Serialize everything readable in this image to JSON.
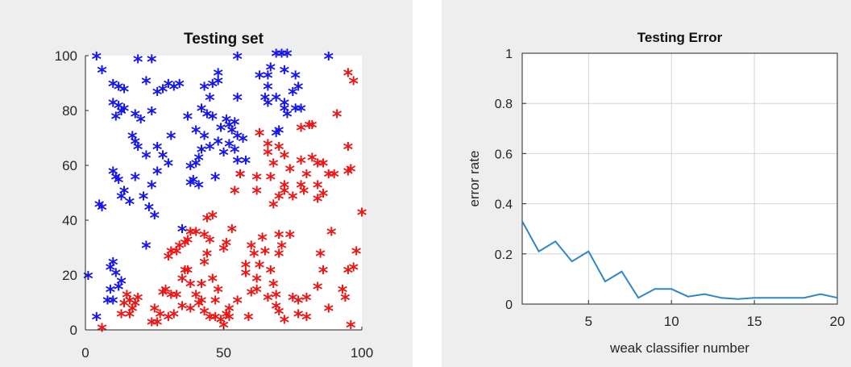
{
  "colors": {
    "panel_bg": "#eeeeee",
    "axes_bg": "#ffffff",
    "class_a": "#1515ee",
    "class_b": "#ee1515",
    "line": "#2e86c8",
    "grid": "#d4d4d4"
  },
  "chart_data": [
    {
      "type": "scatter",
      "title": "Testing set",
      "xlabel": "",
      "ylabel": "",
      "xlim": [
        0,
        100
      ],
      "ylim": [
        0,
        100
      ],
      "xticks": [
        0,
        50,
        100
      ],
      "yticks": [
        0,
        20,
        40,
        60,
        80,
        100
      ],
      "grid": false,
      "marker": "*",
      "series": [
        {
          "color": "#1515ee",
          "points": [
            [
              4,
              99
            ],
            [
              6,
              94
            ],
            [
              10,
              89
            ],
            [
              12,
              88
            ],
            [
              14,
              87
            ],
            [
              10,
              82
            ],
            [
              12,
              81
            ],
            [
              14,
              80
            ],
            [
              13,
              79
            ],
            [
              11,
              77
            ],
            [
              19,
              98
            ],
            [
              24,
              98
            ],
            [
              22,
              90
            ],
            [
              26,
              86
            ],
            [
              28,
              87
            ],
            [
              30,
              89
            ],
            [
              32,
              88
            ],
            [
              34,
              89
            ],
            [
              24,
              79
            ],
            [
              18,
              78
            ],
            [
              20,
              76
            ],
            [
              17,
              70
            ],
            [
              18,
              68
            ],
            [
              19,
              66
            ],
            [
              22,
              63
            ],
            [
              26,
              66
            ],
            [
              28,
              63
            ],
            [
              30,
              60
            ],
            [
              26,
              57
            ],
            [
              31,
              70
            ],
            [
              37,
              77
            ],
            [
              43,
              88
            ],
            [
              45,
              84
            ],
            [
              46,
              89
            ],
            [
              48,
              90
            ],
            [
              48,
              93
            ],
            [
              42,
              80
            ],
            [
              44,
              78
            ],
            [
              46,
              77
            ],
            [
              40,
              72
            ],
            [
              43,
              70
            ],
            [
              42,
              65
            ],
            [
              45,
              66
            ],
            [
              41,
              62
            ],
            [
              40,
              60
            ],
            [
              38,
              59
            ],
            [
              39,
              54
            ],
            [
              41,
              52
            ],
            [
              47,
              55
            ],
            [
              38,
              53
            ],
            [
              55,
              99
            ],
            [
              63,
              92
            ],
            [
              66,
              92
            ],
            [
              67,
              95
            ],
            [
              69,
              100
            ],
            [
              71,
              100
            ],
            [
              73,
              100
            ],
            [
              72,
              94
            ],
            [
              76,
              92
            ],
            [
              77,
              88
            ],
            [
              75,
              86
            ],
            [
              66,
              88
            ],
            [
              65,
              84
            ],
            [
              66,
              82
            ],
            [
              69,
              84
            ],
            [
              72,
              82
            ],
            [
              72,
              80
            ],
            [
              73,
              78
            ],
            [
              76,
              80
            ],
            [
              78,
              80
            ],
            [
              70,
              72
            ],
            [
              69,
              71
            ],
            [
              55,
              84
            ],
            [
              51,
              76
            ],
            [
              52,
              74
            ],
            [
              53,
              72
            ],
            [
              54,
              75
            ],
            [
              55,
              70
            ],
            [
              57,
              69
            ],
            [
              52,
              67
            ],
            [
              54,
              65
            ],
            [
              55,
              61
            ],
            [
              58,
              61
            ],
            [
              56,
              56
            ],
            [
              49,
              73
            ],
            [
              48,
              68
            ],
            [
              50,
              64
            ],
            [
              88,
              99
            ],
            [
              10,
              57
            ],
            [
              11,
              55
            ],
            [
              12,
              54
            ],
            [
              14,
              50
            ],
            [
              13,
              48
            ],
            [
              16,
              46
            ],
            [
              5,
              45
            ],
            [
              6,
              44
            ],
            [
              18,
              55
            ],
            [
              21,
              48
            ],
            [
              23,
              44
            ],
            [
              25,
              41
            ],
            [
              24,
              52
            ],
            [
              22,
              30
            ],
            [
              35,
              36
            ],
            [
              1,
              19
            ],
            [
              9,
              22
            ],
            [
              10,
              24
            ],
            [
              11,
              20
            ],
            [
              13,
              17
            ],
            [
              12,
              15
            ],
            [
              9,
              14
            ],
            [
              8,
              10
            ],
            [
              10,
              10
            ],
            [
              4,
              4
            ]
          ]
        },
        {
          "color": "#ee1515",
          "points": [
            [
              95,
              93
            ],
            [
              97,
              90
            ],
            [
              91,
              78
            ],
            [
              81,
              74
            ],
            [
              82,
              74
            ],
            [
              78,
              73
            ],
            [
              63,
              71
            ],
            [
              66,
              67
            ],
            [
              66,
              64
            ],
            [
              70,
              66
            ],
            [
              72,
              63
            ],
            [
              68,
              60
            ],
            [
              67,
              55
            ],
            [
              74,
              58
            ],
            [
              72,
              52
            ],
            [
              78,
              61
            ],
            [
              82,
              62
            ],
            [
              84,
              60
            ],
            [
              86,
              60
            ],
            [
              88,
              56
            ],
            [
              90,
              56
            ],
            [
              80,
              56
            ],
            [
              78,
              52
            ],
            [
              79,
              50
            ],
            [
              84,
              52
            ],
            [
              86,
              49
            ],
            [
              84,
              47
            ],
            [
              72,
              50
            ],
            [
              70,
              48
            ],
            [
              68,
              45
            ],
            [
              75,
              48
            ],
            [
              56,
              56
            ],
            [
              54,
              50
            ],
            [
              62,
              55
            ],
            [
              62,
              50
            ],
            [
              95,
              66
            ],
            [
              96,
              58
            ],
            [
              95,
              57
            ],
            [
              100,
              42
            ],
            [
              89,
              35
            ],
            [
              74,
              34
            ],
            [
              70,
              34
            ],
            [
              71,
              30
            ],
            [
              70,
              27
            ],
            [
              64,
              33
            ],
            [
              65,
              28
            ],
            [
              60,
              30
            ],
            [
              61,
              27
            ],
            [
              58,
              23
            ],
            [
              58,
              20
            ],
            [
              63,
              23
            ],
            [
              62,
              18
            ],
            [
              62,
              14
            ],
            [
              60,
              13
            ],
            [
              67,
              21
            ],
            [
              68,
              16
            ],
            [
              69,
              12
            ],
            [
              66,
              11
            ],
            [
              69,
              8
            ],
            [
              70,
              6
            ],
            [
              72,
              3
            ],
            [
              75,
              11
            ],
            [
              77,
              10
            ],
            [
              80,
              11
            ],
            [
              77,
              5
            ],
            [
              80,
              4
            ],
            [
              88,
              7
            ],
            [
              84,
              15
            ],
            [
              86,
              21
            ],
            [
              85,
              27
            ],
            [
              97,
              22
            ],
            [
              95,
              21
            ],
            [
              98,
              28
            ],
            [
              93,
              14
            ],
            [
              94,
              11
            ],
            [
              96,
              1
            ],
            [
              59,
              4
            ],
            [
              51,
              5
            ],
            [
              47,
              10
            ],
            [
              48,
              14
            ],
            [
              46,
              18
            ],
            [
              42,
              16
            ],
            [
              43,
              24
            ],
            [
              44,
              27
            ],
            [
              50,
              29
            ],
            [
              51,
              31
            ],
            [
              53,
              36
            ],
            [
              45,
              32
            ],
            [
              43,
              34
            ],
            [
              44,
              40
            ],
            [
              46,
              41
            ],
            [
              40,
              35
            ],
            [
              38,
              35
            ],
            [
              37,
              32
            ],
            [
              36,
              31
            ],
            [
              34,
              30
            ],
            [
              33,
              28
            ],
            [
              31,
              28
            ],
            [
              30,
              26
            ],
            [
              29,
              14
            ],
            [
              28,
              13
            ],
            [
              31,
              12
            ],
            [
              33,
              12
            ],
            [
              35,
              18
            ],
            [
              36,
              21
            ],
            [
              37,
              21
            ],
            [
              38,
              16
            ],
            [
              40,
              12
            ],
            [
              42,
              10
            ],
            [
              35,
              8
            ],
            [
              38,
              7
            ],
            [
              41,
              9
            ],
            [
              43,
              6
            ],
            [
              45,
              4
            ],
            [
              47,
              4
            ],
            [
              49,
              3
            ],
            [
              52,
              4
            ],
            [
              52,
              7
            ],
            [
              55,
              10
            ],
            [
              25,
              7
            ],
            [
              27,
              5
            ],
            [
              26,
              2
            ],
            [
              24,
              2
            ],
            [
              30,
              4
            ],
            [
              32,
              5
            ],
            [
              15,
              12
            ],
            [
              16,
              10
            ],
            [
              14,
              9
            ],
            [
              18,
              9
            ],
            [
              19,
              11
            ],
            [
              17,
              7
            ],
            [
              16,
              5
            ],
            [
              13,
              5
            ],
            [
              6,
              0
            ],
            [
              50,
              1
            ]
          ]
        }
      ]
    },
    {
      "type": "line",
      "title": "Testing Error",
      "xlabel": "weak classifier number",
      "ylabel": "error rate",
      "xlim": [
        1,
        20
      ],
      "ylim": [
        0,
        1
      ],
      "xticks": [
        5,
        10,
        15,
        20
      ],
      "yticks": [
        0,
        0.2,
        0.4,
        0.6,
        0.8,
        1
      ],
      "grid": true,
      "x": [
        1,
        2,
        3,
        4,
        5,
        6,
        7,
        8,
        9,
        10,
        11,
        12,
        13,
        14,
        15,
        16,
        17,
        18,
        19,
        20
      ],
      "values": [
        0.33,
        0.21,
        0.25,
        0.17,
        0.21,
        0.09,
        0.13,
        0.025,
        0.06,
        0.06,
        0.03,
        0.04,
        0.025,
        0.02,
        0.025,
        0.025,
        0.025,
        0.025,
        0.04,
        0.025
      ]
    }
  ]
}
